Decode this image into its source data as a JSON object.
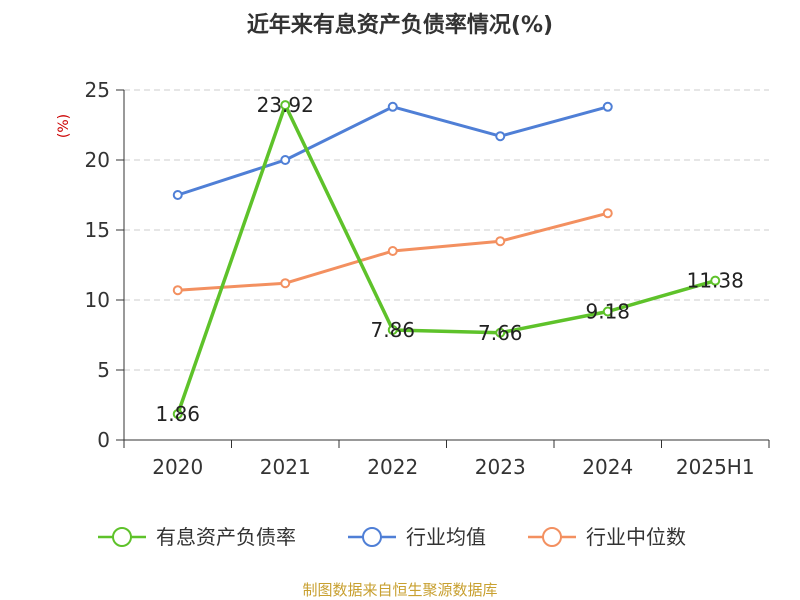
{
  "chart_data": {
    "type": "line",
    "title": "近年来有息资产负债率情况(%)",
    "ylabel": "(%)",
    "categories": [
      "2020",
      "2021",
      "2022",
      "2023",
      "2024",
      "2025H1"
    ],
    "ylim": [
      0,
      25
    ],
    "yticks": [
      0,
      5,
      10,
      15,
      20,
      25
    ],
    "grid": true,
    "legend_position": "bottom",
    "series": [
      {
        "name": "有息资产负债率",
        "color": "#5ec22a",
        "values": [
          1.86,
          23.92,
          7.86,
          7.66,
          9.18,
          11.38
        ],
        "labels": [
          "1.86",
          "23.92",
          "7.86",
          "7.66",
          "9.18",
          "11.38"
        ]
      },
      {
        "name": "行业均值",
        "color": "#4f7fd6",
        "values": [
          17.5,
          20.0,
          23.8,
          21.7,
          23.8,
          null
        ]
      },
      {
        "name": "行业中位数",
        "color": "#f39060",
        "values": [
          10.7,
          11.2,
          13.5,
          14.2,
          16.2,
          null
        ]
      }
    ]
  },
  "source_text": "制图数据来自恒生聚源数据库",
  "colors": {
    "ylabel": "#cc0000",
    "source": "#c8a030",
    "axis": "#333333",
    "grid": "#cccccc"
  }
}
